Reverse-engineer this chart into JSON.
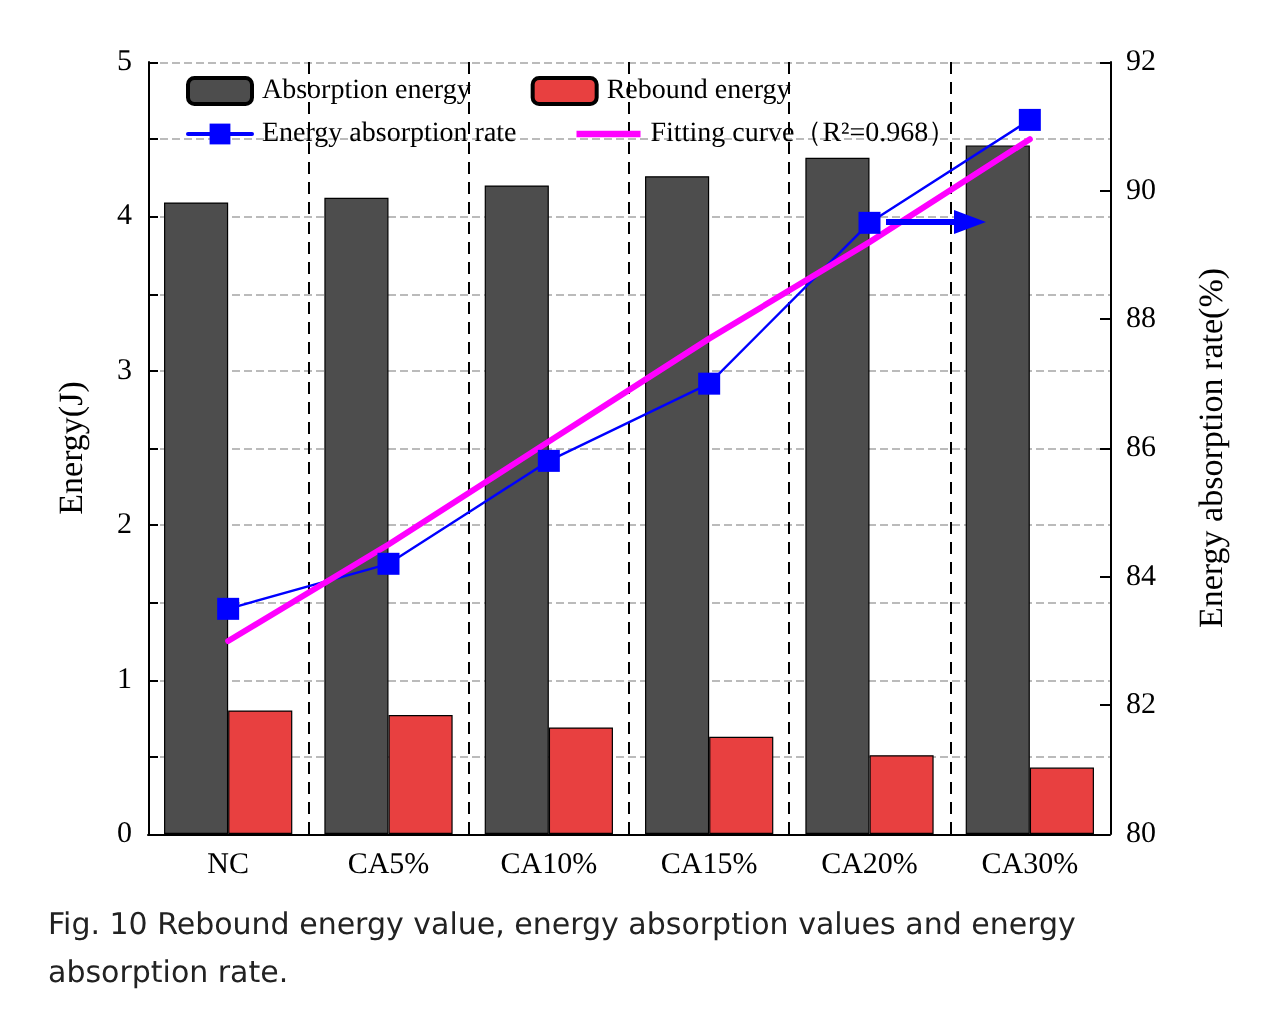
{
  "chart_data": {
    "type": "bar",
    "ylabel": "Energy(J)",
    "y2label": "Energy absorption rate(%)",
    "categories": [
      "NC",
      "CA5%",
      "CA10%",
      "CA15%",
      "CA20%",
      "CA30%"
    ],
    "series": [
      {
        "name": "Absorption energy",
        "color": "#4d4d4d",
        "values": [
          4.09,
          4.12,
          4.2,
          4.26,
          4.38,
          4.46
        ]
      },
      {
        "name": "Rebound energy",
        "color": "#e84040",
        "values": [
          0.8,
          0.77,
          0.69,
          0.63,
          0.51,
          0.43
        ]
      },
      {
        "name": "Energy absorption rate",
        "type": "line",
        "axis": "y2",
        "color": "#0000ff",
        "marker": "square",
        "values": [
          83.5,
          84.2,
          85.8,
          87.0,
          89.5,
          91.1
        ]
      },
      {
        "name": "Fitting curve（R²=0.968）",
        "type": "line",
        "axis": "y2",
        "color": "#ff00ff",
        "marker": "none",
        "values": [
          83.0,
          84.5,
          86.1,
          87.7,
          89.2,
          90.8
        ]
      }
    ],
    "ylim": [
      0,
      5
    ],
    "yticks": [
      0,
      {
        "value": 0.5,
        "label": null
      },
      1,
      {
        "value": 1.5,
        "label": null
      },
      2,
      {
        "value": 2.5,
        "label": null
      },
      3,
      {
        "value": 3.5,
        "label": null
      },
      4,
      {
        "value": 4.5,
        "label": null
      },
      5
    ],
    "y2lim": [
      80,
      92
    ],
    "y2ticks": [
      80,
      82,
      84,
      86,
      88,
      90,
      92
    ],
    "grid": true,
    "legend": "top left",
    "line_style": "solid",
    "annotations": [
      "Fig. 10  Rebound energy value, energy absorption values and energy absorption rate."
    ]
  }
}
